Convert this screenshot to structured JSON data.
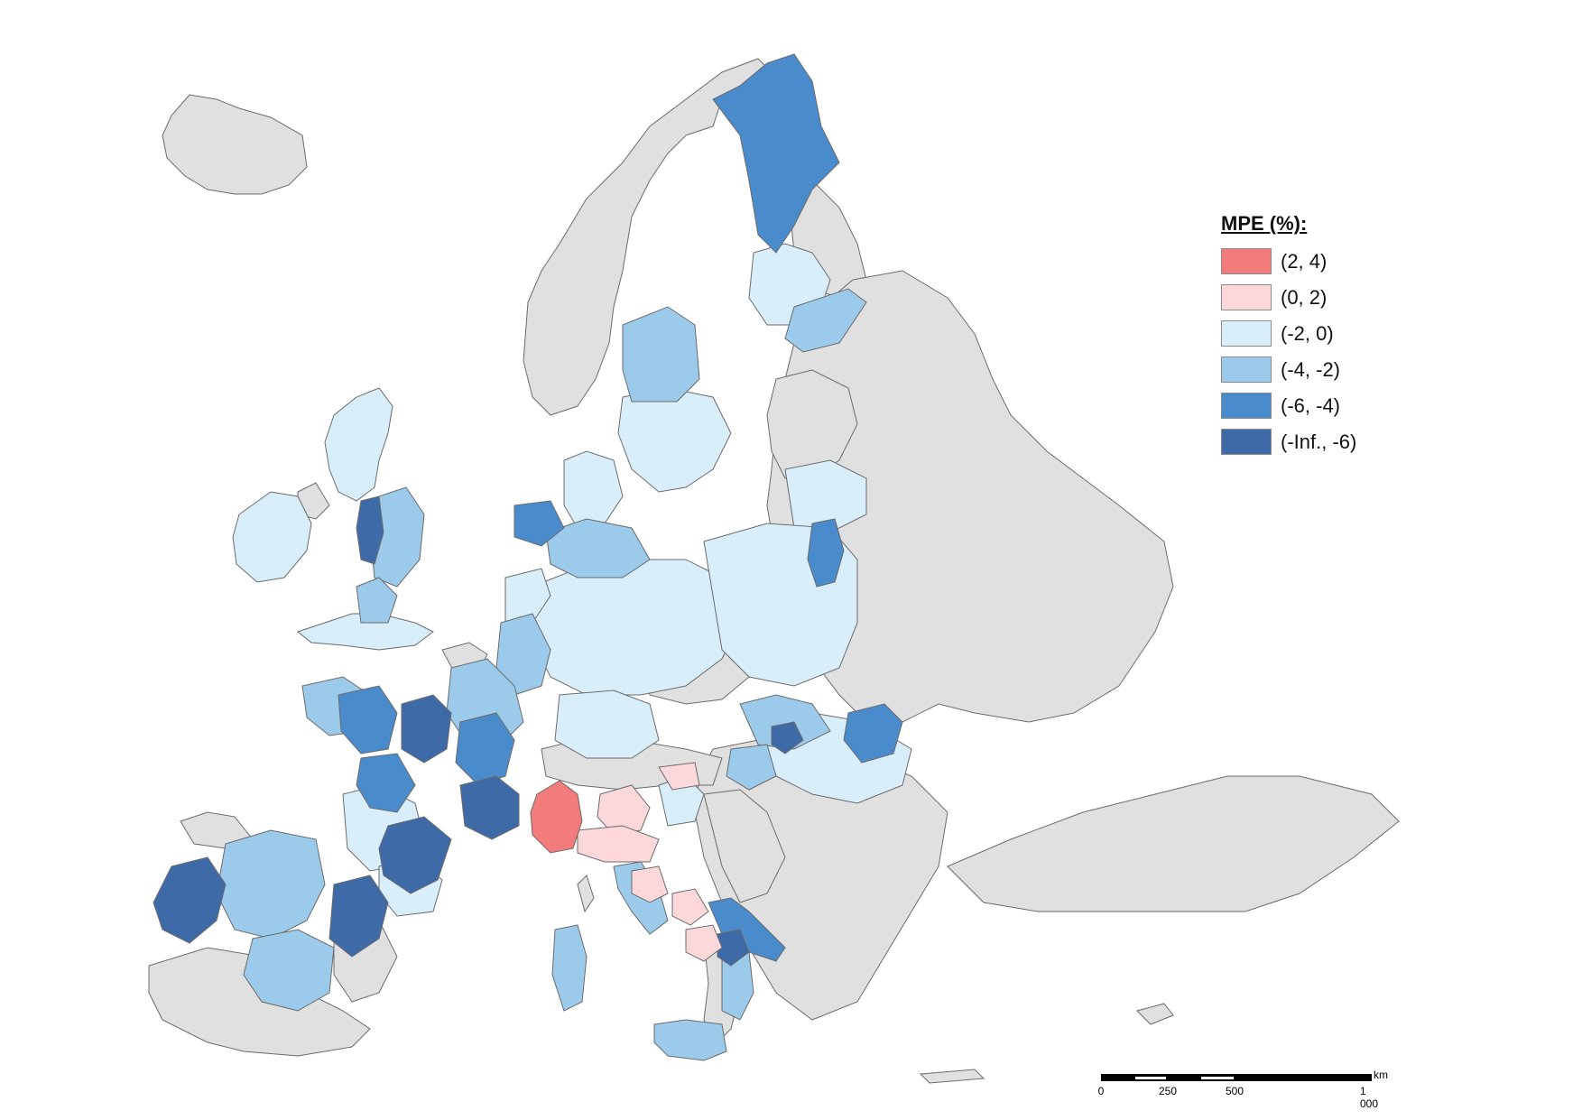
{
  "colors": {
    "background": "#ffffff",
    "no_data": "#e0e0e0",
    "border": "#6b6b6b",
    "class_2_4": "#f27b7b",
    "class_0_2": "#fdd8db",
    "class_m2_0": "#d8effb",
    "class_m4_m2": "#9ccaeb",
    "class_m6_m4": "#4a8bcc",
    "class_minf_m6": "#3f6aa8"
  },
  "legend": {
    "title": "MPE (%):",
    "items": [
      {
        "label": "(2, 4)",
        "color": "#f27b7b"
      },
      {
        "label": "(0, 2)",
        "color": "#fdd8db"
      },
      {
        "label": "(-2, 0)",
        "color": "#d8effb"
      },
      {
        "label": "(-4, -2)",
        "color": "#9ccaeb"
      },
      {
        "label": "(-6, -4)",
        "color": "#4a8bcc"
      },
      {
        "label": "(-Inf., -6)",
        "color": "#3f6aa8"
      }
    ]
  },
  "scale_bar": {
    "unit": "km",
    "ticks": [
      "0",
      "250",
      "500",
      "1 000"
    ]
  }
}
